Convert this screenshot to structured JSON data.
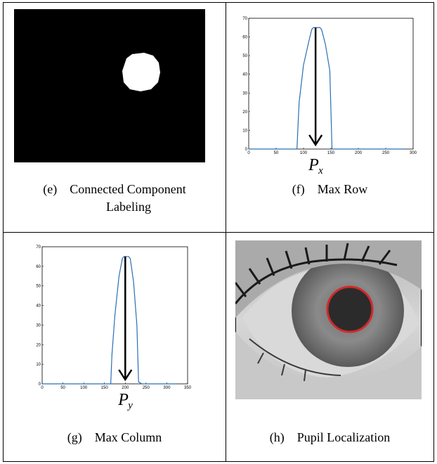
{
  "panels": [
    {
      "label": "(e)",
      "caption_line1": "Connected Component",
      "caption_line2": "Labeling"
    },
    {
      "label": "(f)",
      "caption_line1": "Max Row"
    },
    {
      "label": "(g)",
      "caption_line1": "Max Column"
    },
    {
      "label": "(h)",
      "caption_line1": "Pupil Localization"
    }
  ],
  "arrow_labels": {
    "f": {
      "var": "P",
      "sub": "x"
    },
    "g": {
      "var": "P",
      "sub": "y"
    }
  },
  "chart_data": [
    {
      "type": "line",
      "panel": "(f)",
      "xlim": [
        0,
        300
      ],
      "ylim": [
        0,
        70
      ],
      "xticks": [
        "0",
        "50",
        "100",
        "150",
        "200",
        "250",
        "300"
      ],
      "yticks": [
        "0",
        "10",
        "20",
        "30",
        "40",
        "50",
        "60",
        "70"
      ],
      "x": [
        0,
        88,
        92,
        100,
        110,
        115,
        118,
        130,
        133,
        140,
        148,
        152,
        160,
        285
      ],
      "y": [
        0,
        0,
        25,
        45,
        58,
        64,
        65,
        65,
        64,
        56,
        42,
        0,
        0,
        0
      ],
      "color": "#2a6fb5"
    },
    {
      "type": "line",
      "panel": "(g)",
      "xlim": [
        0,
        350
      ],
      "ylim": [
        0,
        70
      ],
      "xticks": [
        "0",
        "50",
        "100",
        "150",
        "200",
        "250",
        "300",
        "350"
      ],
      "yticks": [
        "0",
        "10",
        "20",
        "30",
        "40",
        "50",
        "60",
        "70"
      ],
      "x": [
        0,
        165,
        168,
        175,
        185,
        193,
        197,
        208,
        212,
        220,
        228,
        232,
        240,
        290,
        322
      ],
      "y": [
        0,
        0,
        15,
        35,
        55,
        64,
        65,
        65,
        64,
        52,
        30,
        1,
        0,
        0,
        0
      ],
      "color": "#2a6fb5"
    }
  ],
  "colors": {
    "pupil_ring": "#d12a2a",
    "plot_line": "#2a6fb5"
  }
}
